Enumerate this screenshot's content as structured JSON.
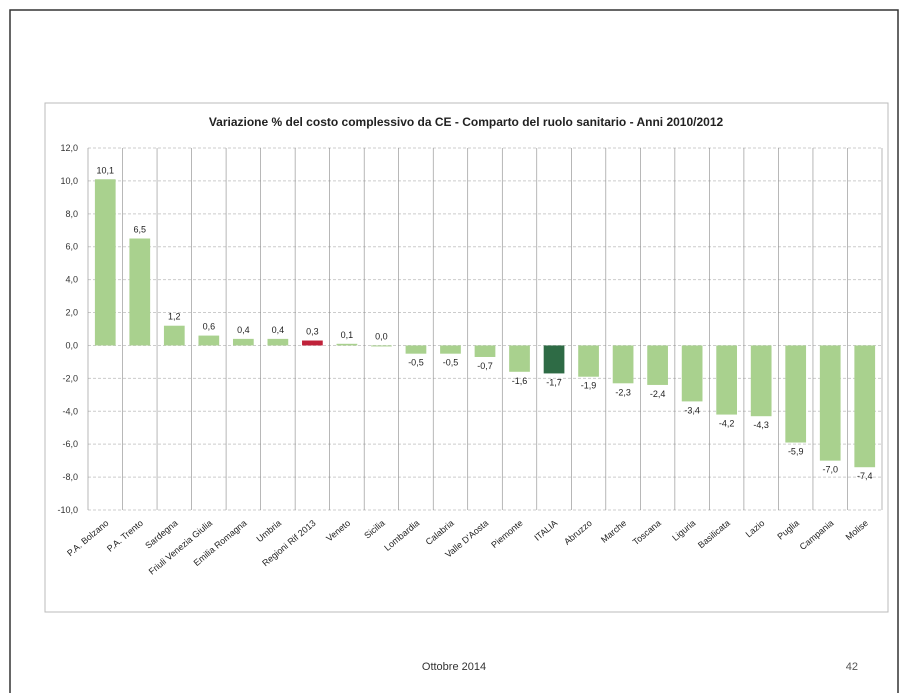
{
  "chart_data": {
    "type": "bar",
    "title": "Variazione % del costo complessivo da CE - Comparto del ruolo sanitario - Anni 2010/2012",
    "categories": [
      "P.A. Bolzano",
      "P.A. Trento",
      "Sardegna",
      "Friuli Venezia Giulia",
      "Emilia Romagna",
      "Umbria",
      "Regioni Rif 2013",
      "Veneto",
      "Sicilia",
      "Lombardia",
      "Calabria",
      "Valle D'Aosta",
      "Piemonte",
      "ITALIA",
      "Abruzzo",
      "Marche",
      "Toscana",
      "Liguria",
      "Basilicata",
      "Lazio",
      "Puglia",
      "Campania",
      "Molise"
    ],
    "values": [
      10.1,
      6.5,
      1.2,
      0.6,
      0.4,
      0.4,
      0.3,
      0.1,
      0.0,
      -0.5,
      -0.5,
      -0.7,
      -1.6,
      -1.7,
      -1.9,
      -2.3,
      -2.4,
      -3.4,
      -4.2,
      -4.3,
      -5.9,
      -7.0,
      -7.4
    ],
    "value_labels": [
      "10,1",
      "6,5",
      "1,2",
      "0,6",
      "0,4",
      "0,4",
      "0,3",
      "0,1",
      "0,0",
      "-0,5",
      "-0,5",
      "-0,7",
      "-1,6",
      "-1,7",
      "-1,9",
      "-2,3",
      "-2,4",
      "-3,4",
      "-4,2",
      "-4,3",
      "-5,9",
      "-7,0",
      "-7,4"
    ],
    "colors": [
      "#a9d18e",
      "#a9d18e",
      "#a9d18e",
      "#a9d18e",
      "#a9d18e",
      "#a9d18e",
      "#c0223a",
      "#a9d18e",
      "#a9d18e",
      "#a9d18e",
      "#a9d18e",
      "#a9d18e",
      "#a9d18e",
      "#2e6b45",
      "#a9d18e",
      "#a9d18e",
      "#a9d18e",
      "#a9d18e",
      "#a9d18e",
      "#a9d18e",
      "#a9d18e",
      "#a9d18e",
      "#a9d18e"
    ],
    "ylim": [
      -10,
      12
    ],
    "yticks": [
      {
        "value": 12,
        "label": "12,0"
      },
      {
        "value": 10,
        "label": "10,0"
      },
      {
        "value": 8,
        "label": "8,0"
      },
      {
        "value": 6,
        "label": "6,0"
      },
      {
        "value": 4,
        "label": "4,0"
      },
      {
        "value": 2,
        "label": "2,0"
      },
      {
        "value": 0,
        "label": "0,0"
      },
      {
        "value": -2,
        "label": "-2,0"
      },
      {
        "value": -4,
        "label": "-4,0"
      },
      {
        "value": -6,
        "label": "-6,0"
      },
      {
        "value": -8,
        "label": "-8,0"
      },
      {
        "value": -10,
        "label": "-10,0"
      }
    ],
    "grid": true
  },
  "footer": {
    "date": "Ottobre 2014",
    "page": "42"
  }
}
